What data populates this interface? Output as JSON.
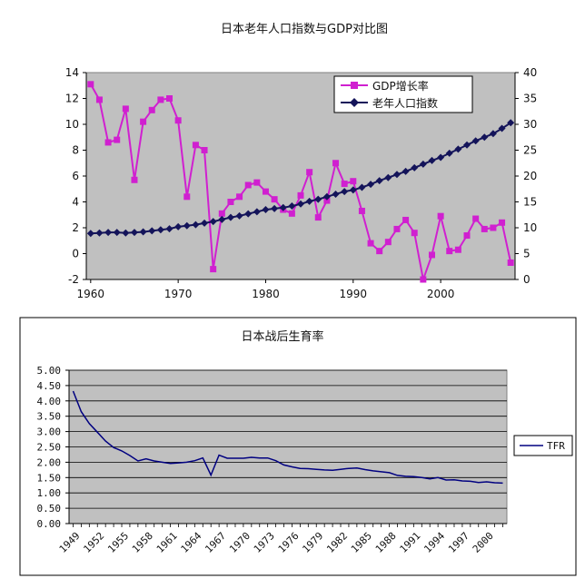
{
  "chart_data": [
    {
      "type": "line",
      "title": "日本老年人口指数与GDP对比图",
      "x": [
        1960,
        1961,
        1962,
        1963,
        1964,
        1965,
        1966,
        1967,
        1968,
        1969,
        1970,
        1971,
        1972,
        1973,
        1974,
        1975,
        1976,
        1977,
        1978,
        1979,
        1980,
        1981,
        1982,
        1983,
        1984,
        1985,
        1986,
        1987,
        1988,
        1989,
        1990,
        1991,
        1992,
        1993,
        1994,
        1995,
        1996,
        1997,
        1998,
        1999,
        2000,
        2001,
        2002,
        2003,
        2004,
        2005,
        2006,
        2007,
        2008
      ],
      "xlim": [
        1959.5,
        2008.5
      ],
      "x_ticks": [
        "1960",
        "1970",
        "1980",
        "1990",
        "2000"
      ],
      "y_left": {
        "lim": [
          -2,
          14
        ],
        "ticks": [
          "-2",
          "0",
          "2",
          "4",
          "6",
          "8",
          "10",
          "12",
          "14"
        ]
      },
      "y_right": {
        "lim": [
          0,
          40
        ],
        "ticks": [
          "0",
          "5",
          "10",
          "15",
          "20",
          "25",
          "30",
          "35",
          "40"
        ]
      },
      "legend_position": "top-right",
      "grid": false,
      "series": [
        {
          "name": "GDP增长率",
          "axis": "left",
          "color": "#d020d0",
          "marker": "square",
          "values": [
            13.1,
            11.9,
            8.6,
            8.8,
            11.2,
            5.7,
            10.2,
            11.1,
            11.9,
            12.0,
            10.3,
            4.4,
            8.4,
            8.0,
            -1.2,
            3.1,
            4.0,
            4.4,
            5.3,
            5.5,
            4.8,
            4.2,
            3.4,
            3.1,
            4.5,
            6.3,
            2.8,
            4.1,
            7.0,
            5.4,
            5.6,
            3.3,
            0.8,
            0.2,
            0.9,
            1.9,
            2.6,
            1.6,
            -2.0,
            -0.1,
            2.9,
            0.2,
            0.3,
            1.4,
            2.7,
            1.9,
            2.0,
            2.4,
            -0.7
          ]
        },
        {
          "name": "老年人口指数",
          "axis": "right",
          "color": "#14145a",
          "marker": "diamond",
          "values": [
            8.9,
            9.0,
            9.1,
            9.1,
            9.0,
            9.1,
            9.2,
            9.4,
            9.6,
            9.8,
            10.2,
            10.4,
            10.6,
            10.9,
            11.2,
            11.6,
            12.0,
            12.3,
            12.7,
            13.1,
            13.5,
            13.7,
            13.9,
            14.2,
            14.6,
            15.1,
            15.5,
            16.0,
            16.5,
            17.0,
            17.3,
            17.8,
            18.4,
            19.1,
            19.7,
            20.3,
            20.9,
            21.6,
            22.3,
            23.0,
            23.6,
            24.4,
            25.2,
            26.0,
            26.8,
            27.5,
            28.2,
            29.2,
            30.3
          ]
        }
      ],
      "colors": {
        "plot_bg": "#c0c0c0",
        "frame": "#808080"
      }
    },
    {
      "type": "line",
      "title": "日本战后生育率",
      "categories": [
        "1949",
        "1952",
        "1955",
        "1958",
        "1961",
        "1964",
        "1967",
        "1970",
        "1973",
        "1976",
        "1979",
        "1982",
        "1985",
        "1988",
        "1991",
        "1994",
        "1997",
        "2000"
      ],
      "x": [
        1949,
        1950,
        1951,
        1952,
        1953,
        1954,
        1955,
        1956,
        1957,
        1958,
        1959,
        1960,
        1961,
        1962,
        1963,
        1964,
        1965,
        1966,
        1967,
        1968,
        1969,
        1970,
        1971,
        1972,
        1973,
        1974,
        1975,
        1976,
        1977,
        1978,
        1979,
        1980,
        1981,
        1982,
        1983,
        1984,
        1985,
        1986,
        1987,
        1988,
        1989,
        1990,
        1991,
        1992,
        1993,
        1994,
        1995,
        1996,
        1997,
        1998,
        1999,
        2000,
        2001,
        2002
      ],
      "ylim": [
        0,
        5
      ],
      "y_ticks": [
        "0.00",
        "0.50",
        "1.00",
        "1.50",
        "2.00",
        "2.50",
        "3.00",
        "3.50",
        "4.00",
        "4.50",
        "5.00"
      ],
      "legend_position": "right",
      "grid": true,
      "series": [
        {
          "name": "TFR",
          "color": "#000080",
          "values": [
            4.32,
            3.65,
            3.26,
            2.98,
            2.69,
            2.48,
            2.37,
            2.22,
            2.04,
            2.11,
            2.04,
            2.0,
            1.96,
            1.98,
            2.0,
            2.05,
            2.14,
            1.58,
            2.23,
            2.13,
            2.13,
            2.13,
            2.16,
            2.14,
            2.14,
            2.05,
            1.91,
            1.85,
            1.8,
            1.79,
            1.77,
            1.75,
            1.74,
            1.77,
            1.8,
            1.81,
            1.76,
            1.72,
            1.69,
            1.66,
            1.57,
            1.54,
            1.53,
            1.5,
            1.46,
            1.5,
            1.42,
            1.43,
            1.39,
            1.38,
            1.34,
            1.36,
            1.33,
            1.32
          ]
        }
      ],
      "colors": {
        "plot_bg": "#c0c0c0"
      }
    }
  ]
}
